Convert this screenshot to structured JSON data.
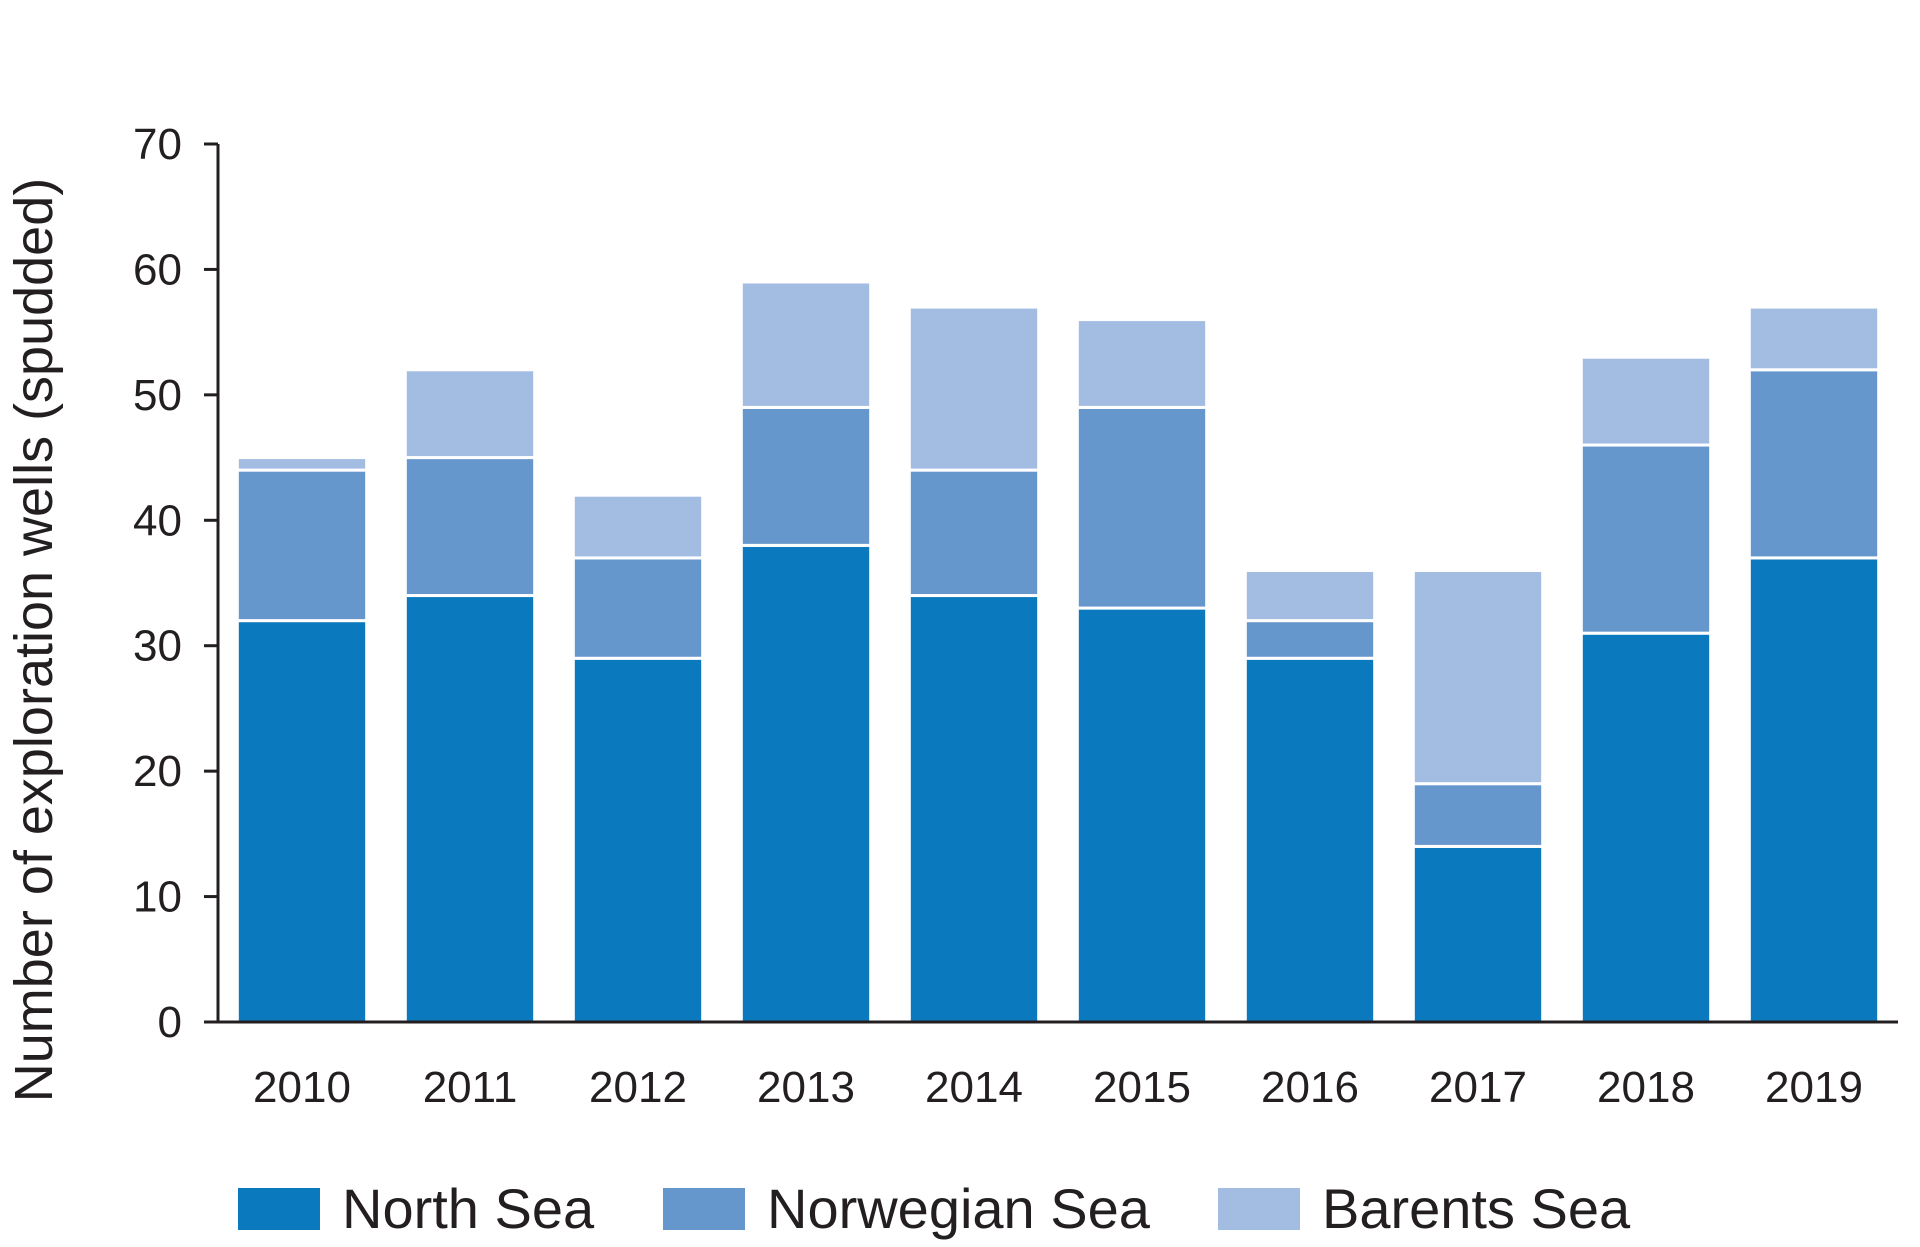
{
  "chart_data": {
    "type": "bar",
    "stacked": true,
    "title": "",
    "xlabel": "",
    "ylabel": "Number of exploration wells (spudded)",
    "ylim": [
      0,
      70
    ],
    "yticks": [
      0,
      10,
      20,
      30,
      40,
      50,
      60,
      70
    ],
    "grid": false,
    "legend_position": "bottom",
    "categories": [
      "2010",
      "2011",
      "2012",
      "2013",
      "2014",
      "2015",
      "2016",
      "2017",
      "2018",
      "2019"
    ],
    "series": [
      {
        "name": "North Sea",
        "color": "#0b79be",
        "values": [
          32,
          34,
          29,
          38,
          34,
          33,
          29,
          14,
          31,
          37
        ]
      },
      {
        "name": "Norwegian Sea",
        "color": "#6597cd",
        "values": [
          12,
          11,
          8,
          11,
          10,
          16,
          3,
          5,
          15,
          15
        ]
      },
      {
        "name": "Barents Sea",
        "color": "#a3bce2",
        "values": [
          1,
          7,
          5,
          10,
          13,
          7,
          4,
          17,
          7,
          5
        ]
      }
    ]
  }
}
